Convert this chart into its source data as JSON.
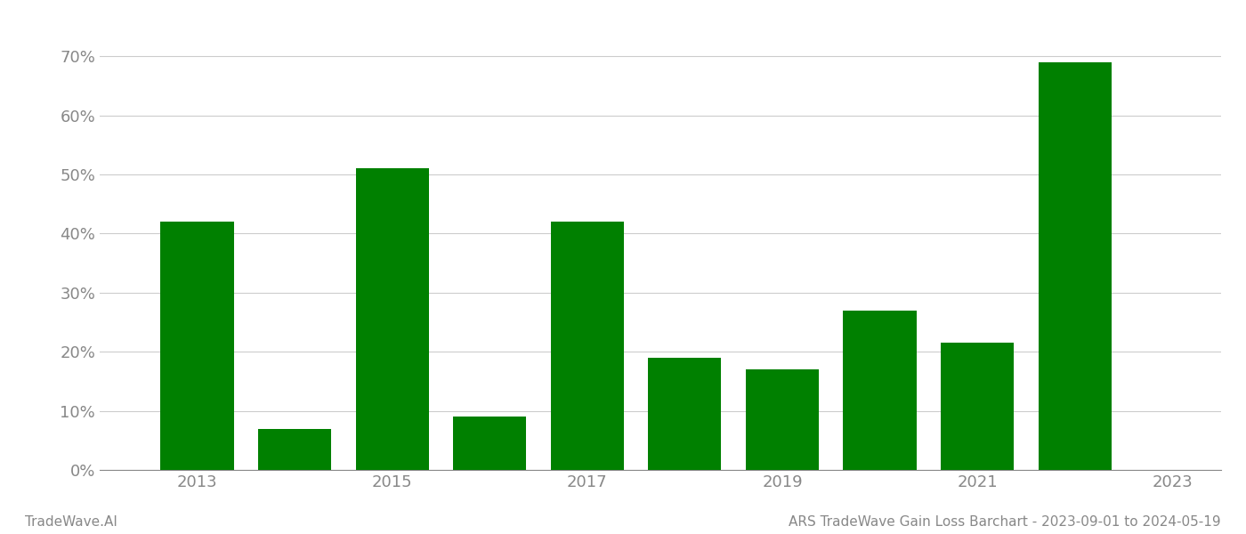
{
  "years": [
    2013,
    2014,
    2015,
    2016,
    2017,
    2018,
    2019,
    2020,
    2021,
    2022
  ],
  "values": [
    0.42,
    0.07,
    0.51,
    0.09,
    0.42,
    0.19,
    0.17,
    0.27,
    0.215,
    0.69
  ],
  "bar_color": "#008000",
  "background_color": "#ffffff",
  "grid_color": "#cccccc",
  "axis_label_color": "#888888",
  "yticks": [
    0.0,
    0.1,
    0.2,
    0.3,
    0.4,
    0.5,
    0.6,
    0.7
  ],
  "xtick_labels": [
    "2013",
    "2015",
    "2017",
    "2019",
    "2021",
    "2023"
  ],
  "xtick_positions": [
    2013,
    2015,
    2017,
    2019,
    2021,
    2023
  ],
  "footer_left": "TradeWave.AI",
  "footer_right": "ARS TradeWave Gain Loss Barchart - 2023-09-01 to 2024-05-19",
  "footer_color": "#888888",
  "footer_fontsize": 11,
  "bar_width": 0.75,
  "xlim": [
    2012.0,
    2023.5
  ],
  "ylim": [
    0.0,
    0.75
  ],
  "tick_fontsize": 13
}
